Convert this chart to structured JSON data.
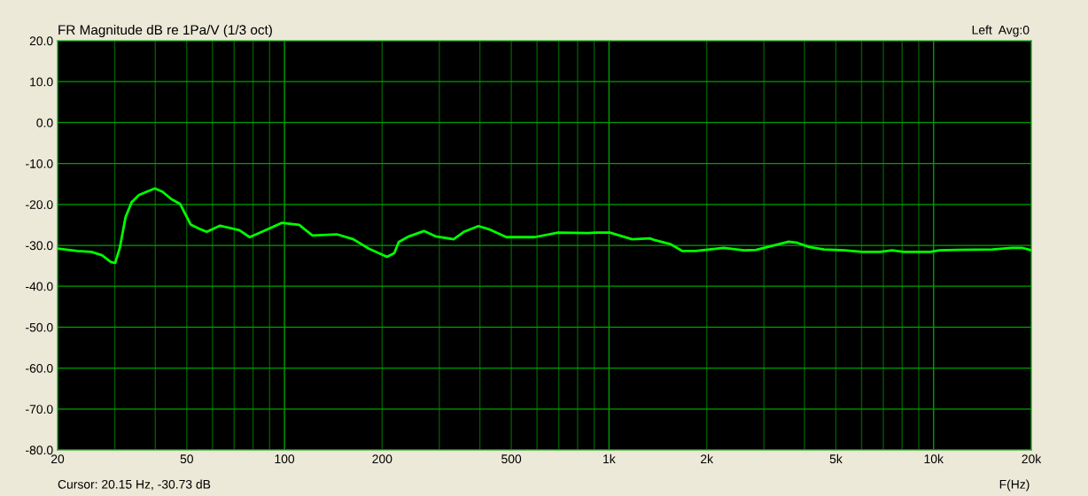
{
  "chart_data": {
    "type": "line",
    "title": "FR Magnitude dB re 1Pa/V (1/3 oct)",
    "xlabel": "F(Hz)",
    "annotations": [
      "Left  Avg:0",
      "Cursor: 20.15 Hz, -30.73 dB"
    ],
    "log": "x",
    "grid": true,
    "legend": false,
    "marker": "none",
    "line_style": "solid",
    "xlim": [
      20,
      20000
    ],
    "ylim": [
      -80,
      20
    ],
    "xticks": [
      {
        "value": 20,
        "label": "20"
      },
      {
        "value": 30,
        "label": null
      },
      {
        "value": 40,
        "label": null
      },
      {
        "value": 50,
        "label": "50"
      },
      {
        "value": 60,
        "label": null
      },
      {
        "value": 70,
        "label": null
      },
      {
        "value": 80,
        "label": null
      },
      {
        "value": 90,
        "label": null
      },
      {
        "value": 100,
        "label": "100"
      },
      {
        "value": 200,
        "label": "200"
      },
      {
        "value": 300,
        "label": null
      },
      {
        "value": 400,
        "label": null
      },
      {
        "value": 500,
        "label": "500"
      },
      {
        "value": 600,
        "label": null
      },
      {
        "value": 700,
        "label": null
      },
      {
        "value": 800,
        "label": null
      },
      {
        "value": 900,
        "label": null
      },
      {
        "value": 1000,
        "label": "1k"
      },
      {
        "value": 2000,
        "label": "2k"
      },
      {
        "value": 3000,
        "label": null
      },
      {
        "value": 4000,
        "label": null
      },
      {
        "value": 5000,
        "label": "5k"
      },
      {
        "value": 6000,
        "label": null
      },
      {
        "value": 7000,
        "label": null
      },
      {
        "value": 8000,
        "label": null
      },
      {
        "value": 9000,
        "label": null
      },
      {
        "value": 10000,
        "label": "10k"
      },
      {
        "value": 20000,
        "label": "20k"
      }
    ],
    "yticks": [
      {
        "value": 20,
        "label": "20.0"
      },
      {
        "value": 10,
        "label": "10.0"
      },
      {
        "value": 0,
        "label": "0.0"
      },
      {
        "value": -10,
        "label": "-10.0"
      },
      {
        "value": -20,
        "label": "-20.0"
      },
      {
        "value": -30,
        "label": "-30.0"
      },
      {
        "value": -40,
        "label": "-40.0"
      },
      {
        "value": -50,
        "label": "-50.0"
      },
      {
        "value": -60,
        "label": "-60.0"
      },
      {
        "value": -70,
        "label": "-70.0"
      },
      {
        "value": -80,
        "label": "-80.0"
      }
    ],
    "x": [
      20,
      23,
      25.4,
      27.4,
      29.2,
      30.1,
      31.1,
      32.4,
      33.8,
      35.6,
      37.9,
      39.9,
      42.1,
      44.8,
      47.7,
      51.4,
      54.1,
      57.6,
      63.3,
      72.6,
      78.1,
      84.0,
      98.3,
      111,
      122,
      145,
      163,
      182,
      207,
      218,
      225,
      242,
      269,
      292,
      332,
      357,
      396,
      431,
      483,
      542,
      590,
      697,
      860,
      915,
      1006,
      1178,
      1335,
      1393,
      1546,
      1682,
      1848,
      2254,
      2610,
      2838,
      3576,
      3808,
      4138,
      4596,
      5322,
      6036,
      6842,
      7446,
      8094,
      9774,
      10406,
      11804,
      15176,
      17396,
      18708,
      20000
    ],
    "series": [
      {
        "color": "#00ff00",
        "values": [
          -30.8,
          -31.4,
          -31.6,
          -32.4,
          -34.1,
          -34.3,
          -30.6,
          -23.1,
          -19.5,
          -17.7,
          -16.8,
          -16.1,
          -16.9,
          -18.7,
          -19.9,
          -24.9,
          -25.8,
          -26.7,
          -25.2,
          -26.3,
          -28.0,
          -26.9,
          -24.5,
          -25.0,
          -27.6,
          -27.3,
          -28.5,
          -30.8,
          -32.8,
          -31.9,
          -29.2,
          -27.8,
          -26.5,
          -27.8,
          -28.5,
          -26.7,
          -25.3,
          -26.2,
          -28.0,
          -28.0,
          -28.0,
          -26.9,
          -27.0,
          -26.9,
          -26.9,
          -28.5,
          -28.3,
          -28.8,
          -29.7,
          -31.4,
          -31.4,
          -30.6,
          -31.2,
          -31.1,
          -29.1,
          -29.4,
          -30.4,
          -31.0,
          -31.2,
          -31.6,
          -31.6,
          -31.2,
          -31.6,
          -31.6,
          -31.2,
          -31.1,
          -31.0,
          -30.6,
          -30.6,
          -31.2
        ]
      }
    ]
  }
}
